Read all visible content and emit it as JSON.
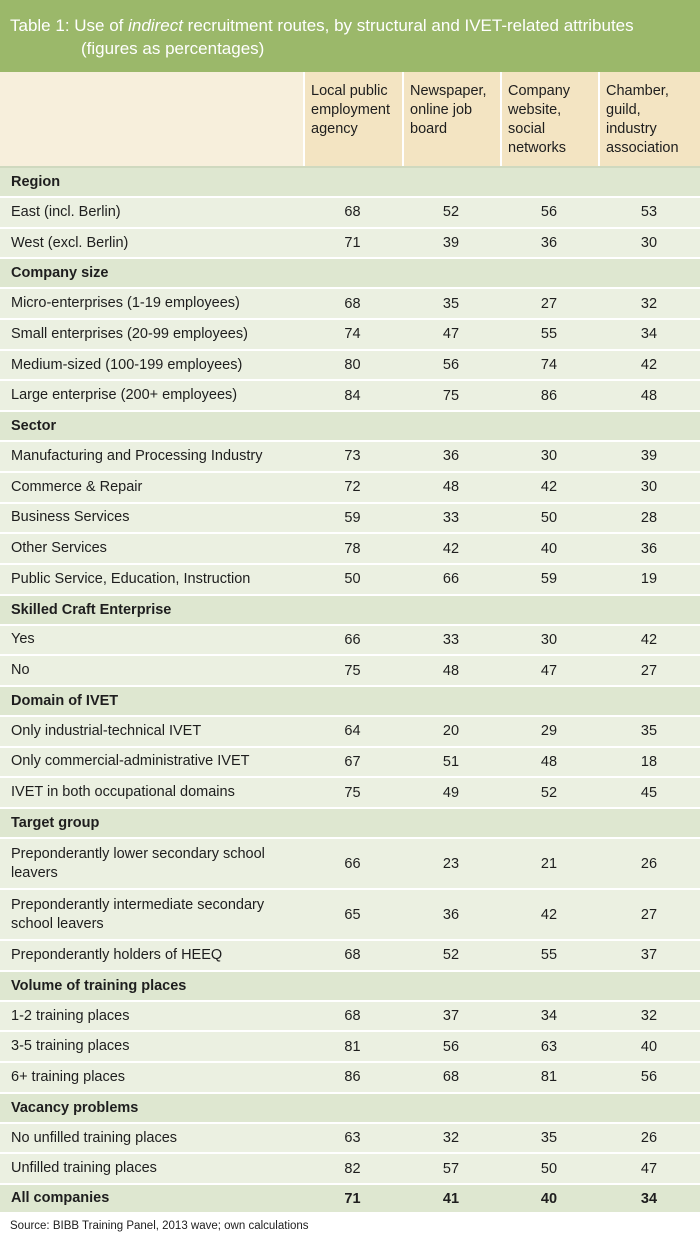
{
  "title": {
    "line1_prefix": "Table 1: Use of ",
    "line1_em": "indirect",
    "line1_suffix": " recruitment routes, by structural and IVET-related attributes",
    "line2": "(figures as percentages)"
  },
  "columns": [
    "Local public employment agency",
    "Newspaper, online job board",
    "Company website, social networks",
    "Chamber, guild, industry association"
  ],
  "sections": [
    {
      "name": "Region",
      "rows": [
        {
          "label": "East (incl. Berlin)",
          "values": [
            "68",
            "52",
            "56",
            "53"
          ]
        },
        {
          "label": "West (excl. Berlin)",
          "values": [
            "71",
            "39",
            "36",
            "30"
          ]
        }
      ]
    },
    {
      "name": "Company size",
      "rows": [
        {
          "label": "Micro-enterprises (1-19 employees)",
          "values": [
            "68",
            "35",
            "27",
            "32"
          ]
        },
        {
          "label": "Small enterprises (20-99 employees)",
          "values": [
            "74",
            "47",
            "55",
            "34"
          ]
        },
        {
          "label": "Medium-sized (100-199 employees)",
          "values": [
            "80",
            "56",
            "74",
            "42"
          ]
        },
        {
          "label": "Large enterprise (200+ employees)",
          "values": [
            "84",
            "75",
            "86",
            "48"
          ]
        }
      ]
    },
    {
      "name": "Sector",
      "rows": [
        {
          "label": "Manufacturing and Processing Industry",
          "values": [
            "73",
            "36",
            "30",
            "39"
          ]
        },
        {
          "label": "Commerce & Repair",
          "values": [
            "72",
            "48",
            "42",
            "30"
          ]
        },
        {
          "label": "Business Services",
          "values": [
            "59",
            "33",
            "50",
            "28"
          ]
        },
        {
          "label": "Other Services",
          "values": [
            "78",
            "42",
            "40",
            "36"
          ]
        },
        {
          "label": "Public Service, Education, Instruction",
          "values": [
            "50",
            "66",
            "59",
            "19"
          ]
        }
      ]
    },
    {
      "name": "Skilled Craft Enterprise",
      "rows": [
        {
          "label": "Yes",
          "values": [
            "66",
            "33",
            "30",
            "42"
          ]
        },
        {
          "label": "No",
          "values": [
            "75",
            "48",
            "47",
            "27"
          ]
        }
      ]
    },
    {
      "name": "Domain of IVET",
      "rows": [
        {
          "label": "Only industrial-technical IVET",
          "values": [
            "64",
            "20",
            "29",
            "35"
          ]
        },
        {
          "label": "Only commercial-administrative IVET",
          "values": [
            "67",
            "51",
            "48",
            "18"
          ]
        },
        {
          "label": "IVET in both occupational domains",
          "values": [
            "75",
            "49",
            "52",
            "45"
          ]
        }
      ]
    },
    {
      "name": "Target group",
      "rows": [
        {
          "label": "Preponderantly lower secondary school leavers",
          "values": [
            "66",
            "23",
            "21",
            "26"
          ]
        },
        {
          "label": "Preponderantly intermediate secondary school leavers",
          "values": [
            "65",
            "36",
            "42",
            "27"
          ]
        },
        {
          "label": "Preponderantly holders of HEEQ",
          "values": [
            "68",
            "52",
            "55",
            "37"
          ]
        }
      ]
    },
    {
      "name": "Volume of training places",
      "rows": [
        {
          "label": "1-2 training places",
          "values": [
            "68",
            "37",
            "34",
            "32"
          ]
        },
        {
          "label": "3-5 training places",
          "values": [
            "81",
            "56",
            "63",
            "40"
          ]
        },
        {
          "label": "6+ training places",
          "values": [
            "86",
            "68",
            "81",
            "56"
          ]
        }
      ]
    },
    {
      "name": "Vacancy problems",
      "rows": [
        {
          "label": "No unfilled training places",
          "values": [
            "63",
            "32",
            "35",
            "26"
          ]
        },
        {
          "label": "Unfilled training places",
          "values": [
            "82",
            "57",
            "50",
            "47"
          ]
        }
      ]
    }
  ],
  "total": {
    "label": "All companies",
    "values": [
      "71",
      "41",
      "40",
      "34"
    ]
  },
  "source": "Source: BIBB Training Panel, 2013 wave; own calculations"
}
